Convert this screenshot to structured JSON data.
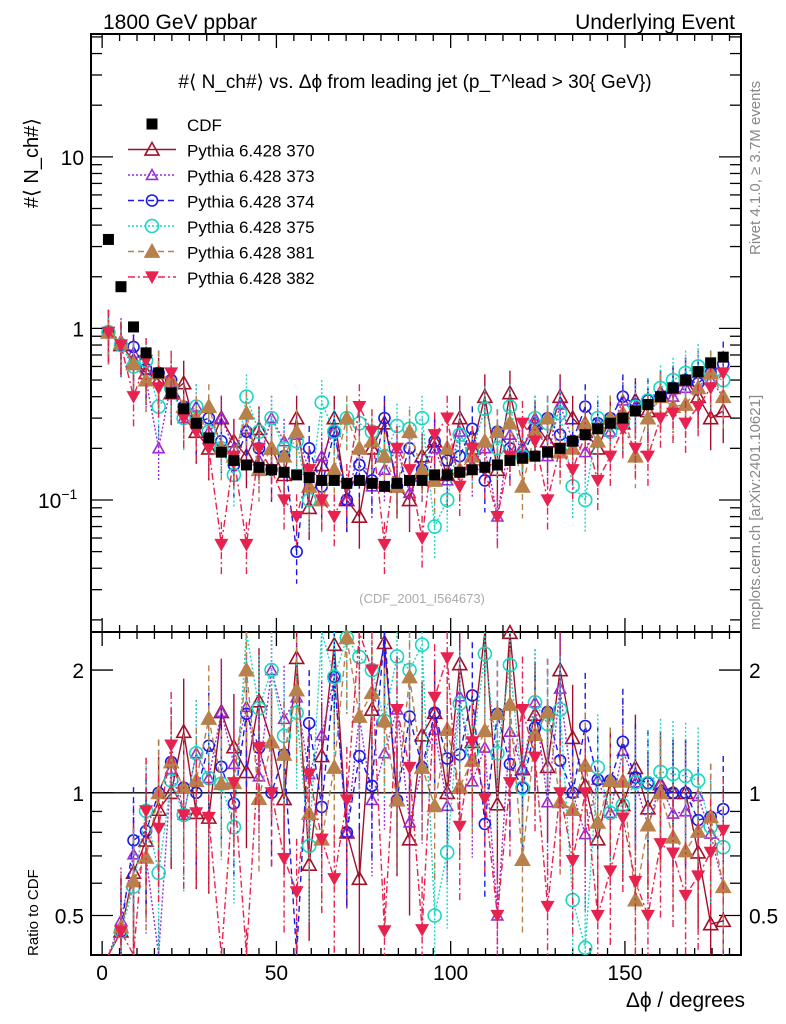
{
  "header": {
    "left": "1800 GeV ppbar",
    "right": "Underlying Event"
  },
  "side_text": {
    "rivet": "Rivet 4.1.0, ≥ 3.7M events",
    "mcplots": "mcplots.cern.ch [arXiv:2401.10621]"
  },
  "watermark": "(CDF_2001_I564673)",
  "chart_data": [
    {
      "type": "scatter",
      "title": "#⟨ N_ch#⟩ vs. Δϕ from leading jet  (p_T^lead > 30{ GeV})",
      "title_parts": {
        "a": "#⟨ N",
        "a_sub": "ch",
        "b": "#⟩ vs. Δϕ from leading jet  (p",
        "b_sup": "lead",
        "b_sub": "T",
        "c": " > 30{ GeV})"
      },
      "ylabel": "#⟨ N_ch#⟩",
      "ylabel_parts": {
        "a": "#⟨ N",
        "sub": "ch",
        "b": "#⟩"
      },
      "xlabel": "Δϕ / degrees",
      "yscale": "log",
      "xlim": [
        -3.2,
        183.3
      ],
      "ylim": [
        0.017,
        52
      ],
      "ytick_labels": [
        {
          "v": 10,
          "t": "10"
        },
        {
          "v": 1,
          "t": "1"
        },
        {
          "v": 0.1,
          "t": "10",
          "sup": "−1"
        }
      ],
      "legend_position": "top-left",
      "x": [
        1.8,
        5.4,
        9,
        12.6,
        16.2,
        19.8,
        23.4,
        27,
        30.6,
        34.2,
        37.8,
        41.4,
        45,
        48.6,
        52.2,
        55.8,
        59.4,
        63,
        66.6,
        70.2,
        73.8,
        77.4,
        81,
        84.6,
        88.2,
        91.8,
        95.4,
        99,
        102.6,
        106.2,
        109.8,
        113.4,
        117,
        120.6,
        124.2,
        127.8,
        131.4,
        135,
        138.6,
        142.2,
        145.8,
        149.4,
        153,
        156.6,
        160.2,
        163.8,
        167.4,
        171,
        174.6,
        178.2
      ],
      "series": [
        {
          "name": "CDF",
          "color": "#000000",
          "marker": "square",
          "line": "none",
          "values": [
            3.3,
            1.75,
            1.02,
            0.72,
            0.55,
            0.42,
            0.34,
            0.28,
            0.23,
            0.19,
            0.17,
            0.16,
            0.155,
            0.15,
            0.145,
            0.14,
            0.135,
            0.13,
            0.13,
            0.125,
            0.13,
            0.125,
            0.12,
            0.125,
            0.13,
            0.13,
            0.14,
            0.14,
            0.145,
            0.15,
            0.155,
            0.16,
            0.17,
            0.175,
            0.18,
            0.19,
            0.2,
            0.22,
            0.24,
            0.26,
            0.28,
            0.3,
            0.33,
            0.36,
            0.4,
            0.45,
            0.5,
            0.56,
            0.63,
            0.68
          ]
        },
        {
          "name": "Pythia 6.428 370",
          "color": "#a0102a",
          "marker": "triangle-open",
          "line": "solid",
          "rel_err": 0.35,
          "values": [
            0.95,
            0.8,
            0.65,
            0.55,
            0.5,
            0.42,
            0.48,
            0.25,
            0.2,
            0.3,
            0.22,
            0.18,
            0.26,
            0.2,
            0.14,
            0.3,
            0.09,
            0.16,
            0.3,
            0.1,
            0.08,
            0.2,
            0.28,
            0.12,
            0.1,
            0.18,
            0.22,
            0.14,
            0.3,
            0.2,
            0.4,
            0.15,
            0.42,
            0.2,
            0.28,
            0.22,
            0.4,
            0.3,
            0.25,
            0.2,
            0.3,
            0.28,
            0.38,
            0.33,
            0.42,
            0.45,
            0.5,
            0.4,
            0.3,
            0.33
          ]
        },
        {
          "name": "Pythia 6.428 373",
          "color": "#9a2bd8",
          "marker": "triangle-open-small",
          "line": "dotted",
          "rel_err": 0.35,
          "values": [
            0.95,
            0.85,
            0.72,
            0.5,
            0.2,
            0.48,
            0.3,
            0.35,
            0.25,
            0.3,
            0.2,
            0.26,
            0.17,
            0.3,
            0.22,
            0.24,
            0.15,
            0.18,
            0.25,
            0.1,
            0.2,
            0.12,
            0.15,
            0.2,
            0.11,
            0.15,
            0.2,
            0.13,
            0.25,
            0.16,
            0.2,
            0.08,
            0.24,
            0.2,
            0.3,
            0.18,
            0.36,
            0.22,
            0.19,
            0.28,
            0.25,
            0.38,
            0.35,
            0.3,
            0.42,
            0.4,
            0.45,
            0.55,
            0.5,
            0.4
          ]
        },
        {
          "name": "Pythia 6.428 374",
          "color": "#1a1ae6",
          "marker": "circle-open",
          "line": "dashed",
          "rel_err": 0.35,
          "values": [
            0.95,
            0.8,
            0.78,
            0.58,
            0.55,
            0.5,
            0.35,
            0.28,
            0.3,
            0.22,
            0.16,
            0.25,
            0.2,
            0.15,
            0.18,
            0.05,
            0.2,
            0.12,
            0.25,
            0.1,
            0.16,
            0.13,
            0.3,
            0.12,
            0.2,
            0.15,
            0.22,
            0.17,
            0.18,
            0.26,
            0.13,
            0.25,
            0.2,
            0.18,
            0.26,
            0.3,
            0.24,
            0.22,
            0.35,
            0.28,
            0.3,
            0.4,
            0.36,
            0.38,
            0.4,
            0.45,
            0.5,
            0.48,
            0.55,
            0.62
          ]
        },
        {
          "name": "Pythia 6.428 375",
          "color": "#1ad6c0",
          "marker": "circle-open-large",
          "line": "dotted",
          "rel_err": 0.35,
          "values": [
            0.95,
            0.8,
            0.6,
            0.65,
            0.35,
            0.45,
            0.3,
            0.35,
            0.25,
            0.2,
            0.14,
            0.4,
            0.25,
            0.3,
            0.2,
            0.22,
            0.1,
            0.37,
            0.25,
            0.3,
            0.28,
            0.25,
            0.18,
            0.27,
            0.26,
            0.3,
            0.07,
            0.1,
            0.24,
            0.19,
            0.34,
            0.2,
            0.35,
            0.18,
            0.3,
            0.28,
            0.32,
            0.12,
            0.1,
            0.3,
            0.25,
            0.28,
            0.35,
            0.38,
            0.45,
            0.5,
            0.55,
            0.6,
            0.52,
            0.5
          ]
        },
        {
          "name": "Pythia 6.428 381",
          "color": "#b8804a",
          "marker": "triangle-filled",
          "line": "dashed",
          "rel_err": 0.35,
          "values": [
            0.95,
            0.82,
            0.62,
            0.5,
            0.55,
            0.5,
            0.35,
            0.3,
            0.35,
            0.2,
            0.18,
            0.32,
            0.15,
            0.2,
            0.18,
            0.25,
            0.12,
            0.1,
            0.15,
            0.3,
            0.2,
            0.22,
            0.18,
            0.12,
            0.25,
            0.15,
            0.13,
            0.2,
            0.15,
            0.18,
            0.22,
            0.25,
            0.28,
            0.12,
            0.25,
            0.3,
            0.19,
            0.2,
            0.28,
            0.22,
            0.3,
            0.32,
            0.18,
            0.3,
            0.4,
            0.35,
            0.36,
            0.45,
            0.55,
            0.4
          ]
        },
        {
          "name": "Pythia 6.428 382",
          "color": "#e8224e",
          "marker": "triangle-down-filled",
          "line": "dashdot",
          "rel_err": 0.35,
          "values": [
            0.95,
            0.8,
            0.4,
            0.65,
            0.45,
            0.55,
            0.3,
            0.25,
            0.2,
            0.055,
            0.18,
            0.055,
            0.2,
            0.15,
            0.1,
            0.08,
            0.15,
            0.1,
            0.08,
            0.12,
            0.35,
            0.25,
            0.055,
            0.2,
            0.15,
            0.06,
            0.24,
            0.3,
            0.12,
            0.2,
            0.15,
            0.08,
            0.18,
            0.28,
            0.22,
            0.1,
            0.2,
            0.15,
            0.24,
            0.13,
            0.18,
            0.26,
            0.2,
            0.18,
            0.3,
            0.32,
            0.28,
            0.35,
            0.45,
            0.55
          ]
        }
      ]
    },
    {
      "type": "line",
      "title": "",
      "ylabel": "Ratio to CDF",
      "xlabel": "Δϕ / degrees",
      "yscale": "log",
      "ylim": [
        0.4,
        2.48
      ],
      "reference": 1,
      "ytick_labels": [
        {
          "v": 0.5,
          "t": "0.5"
        },
        {
          "v": 1,
          "t": "1"
        },
        {
          "v": 2,
          "t": "2"
        }
      ],
      "xtick_labels": [
        {
          "v": 0,
          "t": "0"
        },
        {
          "v": 50,
          "t": "50"
        },
        {
          "v": 100,
          "t": "100"
        },
        {
          "v": 150,
          "t": "150"
        }
      ]
    }
  ]
}
